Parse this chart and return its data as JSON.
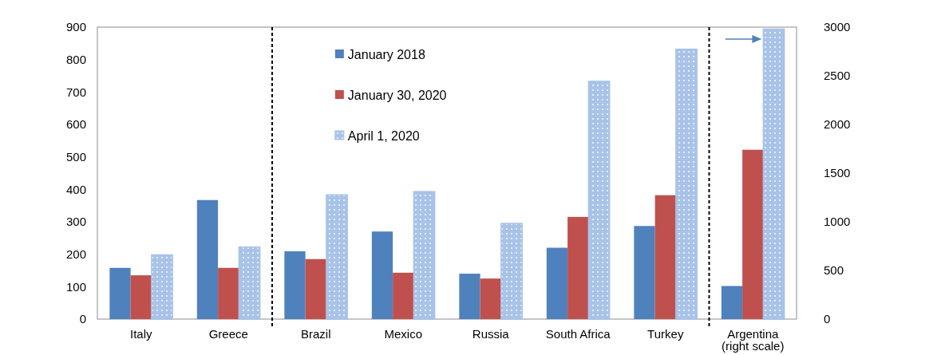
{
  "chart_data": {
    "type": "bar",
    "categories": [
      "Italy",
      "Greece",
      "Brazil",
      "Mexico",
      "Russia",
      "South Africa",
      "Turkey",
      "Argentina (right scale)"
    ],
    "series": [
      {
        "name": "January 2018",
        "color": "#4f81bd",
        "values": [
          158,
          367,
          209,
          270,
          140,
          220,
          287,
          null
        ]
      },
      {
        "name": "January 30, 2020",
        "color": "#c0504d",
        "values": [
          135,
          158,
          185,
          143,
          125,
          315,
          382,
          null
        ]
      },
      {
        "name": "April 1, 2020",
        "color": "#a9c3e8",
        "values": [
          198,
          222,
          383,
          393,
          295,
          733,
          832,
          null
        ]
      },
      {
        "color": "#4f81bd",
        "axis": "y2",
        "values": [
          null,
          null,
          null,
          null,
          null,
          null,
          null,
          340
        ]
      },
      {
        "color": "#c0504d",
        "axis": "y2",
        "values": [
          null,
          null,
          null,
          null,
          null,
          null,
          null,
          1740
        ]
      },
      {
        "color": "#a9c3e8",
        "axis": "y2",
        "values": [
          null,
          null,
          null,
          null,
          null,
          null,
          null,
          2980
        ]
      }
    ],
    "ylim": [
      0,
      900
    ],
    "yticks": [
      0,
      100,
      200,
      300,
      400,
      500,
      600,
      700,
      800,
      900
    ],
    "y2lim": [
      0,
      3000
    ],
    "y2ticks": [
      0,
      500,
      1000,
      1500,
      2000,
      2500,
      3000
    ],
    "legend": "top"
  }
}
